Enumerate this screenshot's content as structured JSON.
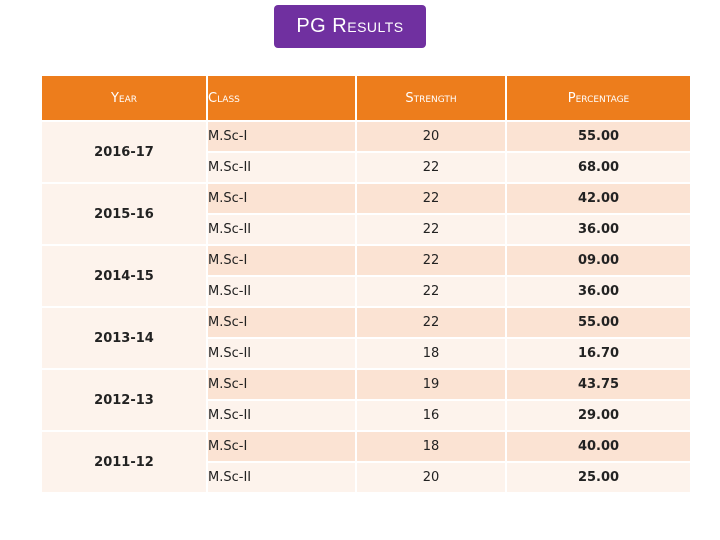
{
  "title": "PG Results",
  "headers": {
    "year": "Year",
    "class": "Class",
    "strength": "Strength",
    "percentage": "Percentage"
  },
  "groups": [
    {
      "year": "2016-17",
      "rows": [
        {
          "class": "M.Sc-I",
          "strength": "20",
          "percentage": "55.00"
        },
        {
          "class": "M.Sc-II",
          "strength": "22",
          "percentage": "68.00"
        }
      ]
    },
    {
      "year": "2015-16",
      "rows": [
        {
          "class": "M.Sc-I",
          "strength": "22",
          "percentage": "42.00"
        },
        {
          "class": "M.Sc-II",
          "strength": "22",
          "percentage": "36.00"
        }
      ]
    },
    {
      "year": "2014-15",
      "rows": [
        {
          "class": "M.Sc-I",
          "strength": "22",
          "percentage": "09.00"
        },
        {
          "class": "M.Sc-II",
          "strength": "22",
          "percentage": "36.00"
        }
      ]
    },
    {
      "year": "2013-14",
      "rows": [
        {
          "class": "M.Sc-I",
          "strength": "22",
          "percentage": "55.00"
        },
        {
          "class": "M.Sc-II",
          "strength": "18",
          "percentage": "16.70"
        }
      ]
    },
    {
      "year": "2012-13",
      "rows": [
        {
          "class": "M.Sc-I",
          "strength": "19",
          "percentage": "43.75"
        },
        {
          "class": "M.Sc-II",
          "strength": "16",
          "percentage": "29.00"
        }
      ]
    },
    {
      "year": "2011-12",
      "rows": [
        {
          "class": "M.Sc-I",
          "strength": "18",
          "percentage": "40.00"
        },
        {
          "class": "M.Sc-II",
          "strength": "20",
          "percentage": "25.00"
        }
      ]
    }
  ],
  "colors": {
    "title_bg": "#7030a0",
    "header_bg": "#ed7d1c",
    "row_dark": "#fbe3d3",
    "row_light": "#fdf3ec"
  }
}
